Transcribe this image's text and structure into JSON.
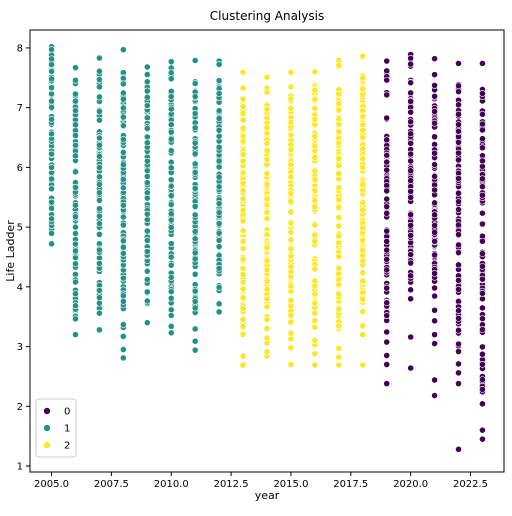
{
  "chart_data": {
    "type": "scatter",
    "title": "Clustering Analysis",
    "xlabel": "year",
    "ylabel": "Life Ladder",
    "xlim": [
      2004.1,
      2023.9
    ],
    "ylim": [
      0.9,
      8.3
    ],
    "x_ticks": [
      2005.0,
      2007.5,
      2010.0,
      2012.5,
      2015.0,
      2017.5,
      2020.0,
      2022.5
    ],
    "x_tick_labels": [
      "2005.0",
      "2007.5",
      "2010.0",
      "2012.5",
      "2015.0",
      "2017.5",
      "2020.0",
      "2022.5"
    ],
    "y_ticks": [
      1,
      2,
      3,
      4,
      5,
      6,
      7,
      8
    ],
    "y_tick_labels": [
      "1",
      "2",
      "3",
      "4",
      "5",
      "6",
      "7",
      "8"
    ],
    "grid": false,
    "legend": {
      "placement": "lower-left",
      "entries": [
        "0",
        "1",
        "2"
      ]
    },
    "series": [
      {
        "name": "0",
        "color": "#440154",
        "points_by_year": [
          {
            "x": 2019,
            "min": 2.38,
            "max": 7.78,
            "outliers": [
              2.7,
              2.38
            ]
          },
          {
            "x": 2020,
            "min": 2.64,
            "max": 7.89,
            "outliers": [
              3.16,
              2.64,
              3.8
            ]
          },
          {
            "x": 2021,
            "min": 2.18,
            "max": 7.82,
            "outliers": [
              2.44,
              2.18,
              3.05
            ]
          },
          {
            "x": 2022,
            "min": 1.28,
            "max": 7.74,
            "outliers": [
              2.56,
              2.38,
              1.28
            ]
          },
          {
            "x": 2023,
            "min": 1.45,
            "max": 7.74,
            "outliers": [
              1.45
            ]
          }
        ]
      },
      {
        "name": "1",
        "color": "#21918c",
        "points_by_year": [
          {
            "x": 2005,
            "min": 4.72,
            "max": 8.02,
            "outliers": []
          },
          {
            "x": 2006,
            "min": 3.2,
            "max": 7.67,
            "outliers": []
          },
          {
            "x": 2007,
            "min": 3.28,
            "max": 7.83,
            "outliers": []
          },
          {
            "x": 2008,
            "min": 2.81,
            "max": 7.97,
            "outliers": [
              3.17,
              2.95,
              2.81
            ]
          },
          {
            "x": 2009,
            "min": 3.4,
            "max": 7.68,
            "outliers": []
          },
          {
            "x": 2010,
            "min": 3.23,
            "max": 7.77,
            "outliers": []
          },
          {
            "x": 2011,
            "min": 2.94,
            "max": 7.79,
            "outliers": [
              2.94
            ]
          },
          {
            "x": 2012,
            "min": 3.58,
            "max": 7.78,
            "outliers": []
          }
        ]
      },
      {
        "name": "2",
        "color": "#fde725",
        "points_by_year": [
          {
            "x": 2013,
            "min": 2.69,
            "max": 7.59,
            "outliers": [
              2.69
            ]
          },
          {
            "x": 2014,
            "min": 2.84,
            "max": 7.51,
            "outliers": [
              2.84,
              2.91
            ]
          },
          {
            "x": 2015,
            "min": 2.7,
            "max": 7.59,
            "outliers": [
              2.98,
              2.7
            ]
          },
          {
            "x": 2016,
            "min": 2.69,
            "max": 7.6,
            "outliers": [
              2.88,
              2.69
            ]
          },
          {
            "x": 2017,
            "min": 2.69,
            "max": 7.79,
            "outliers": [
              2.82,
              2.69
            ]
          },
          {
            "x": 2018,
            "min": 2.69,
            "max": 7.86,
            "outliers": [
              3.2,
              2.69
            ]
          }
        ]
      }
    ]
  }
}
